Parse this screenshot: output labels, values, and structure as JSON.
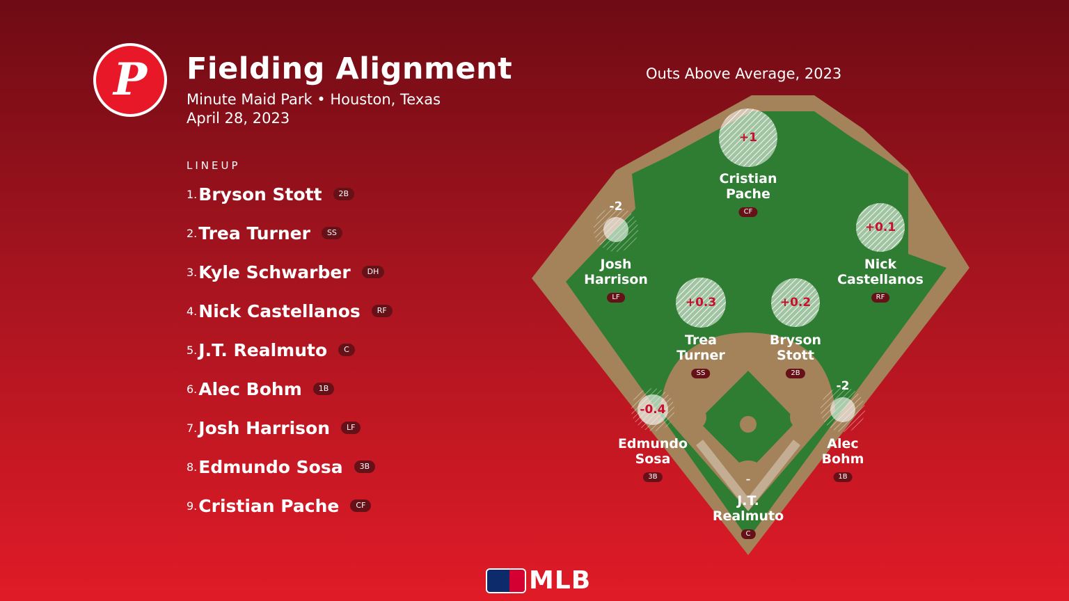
{
  "header": {
    "logo_letter": "P",
    "title": "Fielding Alignment",
    "venue": "Minute Maid Park • Houston, Texas",
    "date": "April 28, 2023"
  },
  "lineup": {
    "heading": "LINEUP",
    "items": [
      {
        "num": "1.",
        "name": "Bryson Stott",
        "pos": "2B"
      },
      {
        "num": "2.",
        "name": "Trea Turner",
        "pos": "SS"
      },
      {
        "num": "3.",
        "name": "Kyle Schwarber",
        "pos": "DH"
      },
      {
        "num": "4.",
        "name": "Nick Castellanos",
        "pos": "RF"
      },
      {
        "num": "5.",
        "name": "J.T. Realmuto",
        "pos": "C"
      },
      {
        "num": "6.",
        "name": "Alec Bohm",
        "pos": "1B"
      },
      {
        "num": "7.",
        "name": "Josh Harrison",
        "pos": "LF"
      },
      {
        "num": "8.",
        "name": "Edmundo Sosa",
        "pos": "3B"
      },
      {
        "num": "9.",
        "name": "Cristian Pache",
        "pos": "CF"
      }
    ]
  },
  "field": {
    "title": "Outs Above Average, 2023",
    "players": [
      {
        "line1": "Cristian",
        "line2": "Pache",
        "pos": "CF",
        "oaa": "+1"
      },
      {
        "line1": "Josh",
        "line2": "Harrison",
        "pos": "LF",
        "oaa": "-2"
      },
      {
        "line1": "Nick",
        "line2": "Castellanos",
        "pos": "RF",
        "oaa": "+0.1"
      },
      {
        "line1": "Trea",
        "line2": "Turner",
        "pos": "SS",
        "oaa": "+0.3"
      },
      {
        "line1": "Bryson",
        "line2": "Stott",
        "pos": "2B",
        "oaa": "+0.2"
      },
      {
        "line1": "Edmundo",
        "line2": "Sosa",
        "pos": "3B",
        "oaa": "-0.4"
      },
      {
        "line1": "Alec",
        "line2": "Bohm",
        "pos": "1B",
        "oaa": "-2"
      },
      {
        "line1": "J.T.",
        "line2": "Realmuto",
        "pos": "C",
        "oaa": "–"
      }
    ]
  },
  "footer": {
    "brand": "MLB"
  },
  "colors": {
    "grass": "#2e7d32",
    "dirt": "#a4835a",
    "phillies_red": "#e81828",
    "badge": "#661018"
  }
}
